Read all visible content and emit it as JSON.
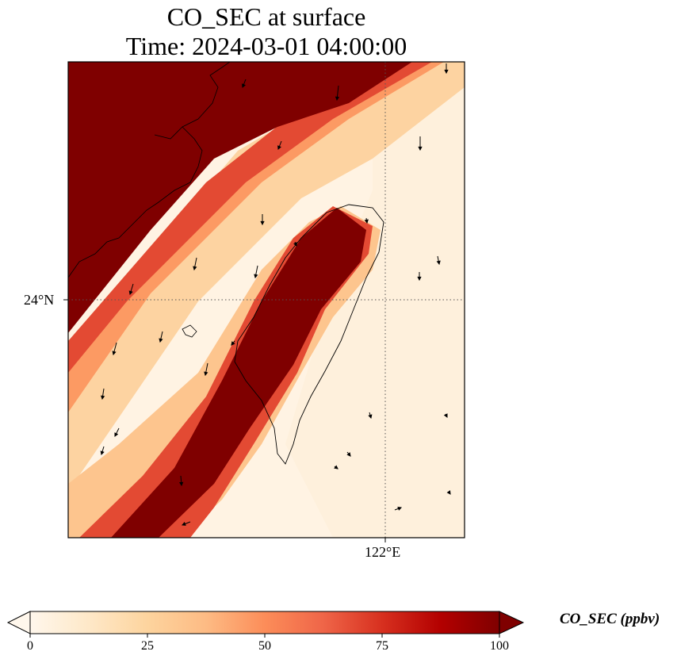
{
  "title": {
    "line1": "CO_SEC at surface",
    "line2": "Time: 2024-03-01 04:00:00"
  },
  "axes": {
    "lat_label": "24°N",
    "lon_label": "122°E"
  },
  "colorbar": {
    "label": "CO_SEC (ppbv)",
    "ticks": [
      "0",
      "25",
      "50",
      "75",
      "100"
    ],
    "vmin": 0,
    "vmax": 100,
    "colormap": "OrRd",
    "extend": "both"
  },
  "colors": {
    "low": "#fff7ec",
    "high": "#7f0000"
  }
}
